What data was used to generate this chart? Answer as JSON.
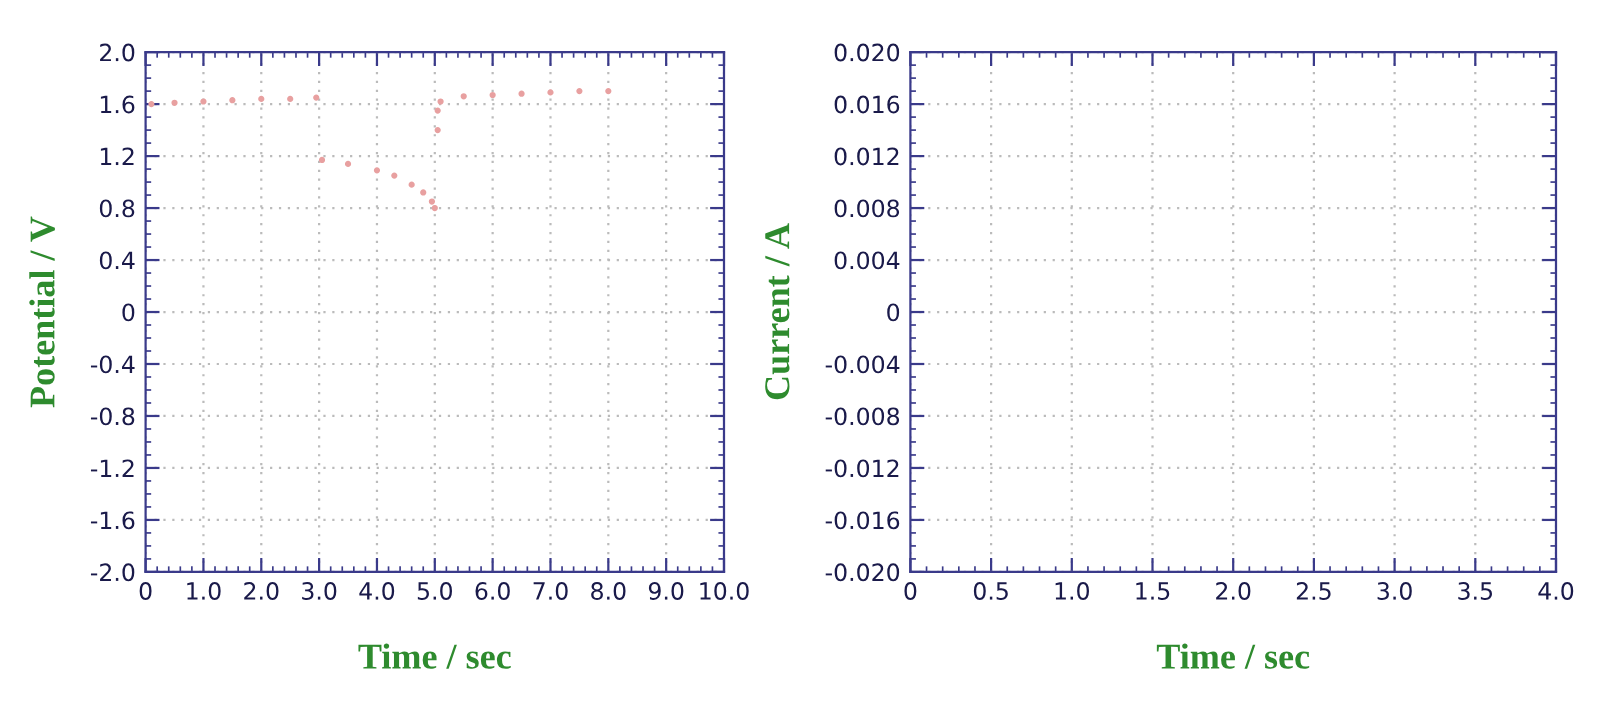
{
  "chart_data": [
    {
      "type": "scatter",
      "xlabel": "Time / sec",
      "ylabel": "Potential / V",
      "marker": "circle",
      "grid": true,
      "xlim": [
        0,
        10
      ],
      "xticks": [
        0,
        {
          "value": 1,
          "label": "1.0"
        },
        {
          "value": 2,
          "label": "2.0"
        },
        {
          "value": 3,
          "label": "3.0"
        },
        {
          "value": 4,
          "label": "4.0"
        },
        {
          "value": 5,
          "label": "5.0"
        },
        {
          "value": 6,
          "label": "6.0"
        },
        {
          "value": 7,
          "label": "7.0"
        },
        {
          "value": 8,
          "label": "8.0"
        },
        {
          "value": 9,
          "label": "9.0"
        },
        {
          "value": 10,
          "label": "10.0"
        }
      ],
      "ylim": [
        -2,
        2
      ],
      "yticks": [
        {
          "value": -2,
          "label": "-2.0"
        },
        {
          "value": -1.6,
          "label": "-1.6"
        },
        {
          "value": -1.2,
          "label": "-1.2"
        },
        {
          "value": -0.8,
          "label": "-0.8"
        },
        {
          "value": -0.4,
          "label": "-0.4"
        },
        0,
        {
          "value": 0.4,
          "label": "0.4"
        },
        {
          "value": 0.8,
          "label": "0.8"
        },
        {
          "value": 1.2,
          "label": "1.2"
        },
        {
          "value": 1.6,
          "label": "1.6"
        },
        {
          "value": 2,
          "label": "2.0"
        }
      ],
      "series": [
        {
          "color": "#e8a0a0",
          "x": [
            0.1,
            0.5,
            1.0,
            1.5,
            2.0,
            2.5,
            2.95,
            3.05,
            3.5,
            4.0,
            4.3,
            4.6,
            4.8,
            4.95,
            5.0,
            5.05,
            5.05,
            5.1,
            5.5,
            6.0,
            6.5,
            7.0,
            7.5,
            8.0
          ],
          "values": [
            1.6,
            1.61,
            1.62,
            1.63,
            1.64,
            1.64,
            1.65,
            1.17,
            1.14,
            1.09,
            1.05,
            0.98,
            0.92,
            0.85,
            0.8,
            1.4,
            1.55,
            1.62,
            1.66,
            1.67,
            1.68,
            1.69,
            1.7,
            1.7
          ]
        }
      ]
    },
    {
      "type": "line",
      "xlabel": "Time / sec",
      "ylabel": "Current / A",
      "grid": true,
      "xlim": [
        0,
        4
      ],
      "xticks": [
        0,
        0.5,
        {
          "value": 1,
          "label": "1.0"
        },
        1.5,
        {
          "value": 2,
          "label": "2.0"
        },
        2.5,
        {
          "value": 3,
          "label": "3.0"
        },
        3.5,
        {
          "value": 4,
          "label": "4.0"
        }
      ],
      "ylim": [
        -0.02,
        0.02
      ],
      "yticks": [
        {
          "value": -0.02,
          "label": "-0.020"
        },
        {
          "value": -0.016,
          "label": "-0.016"
        },
        {
          "value": -0.012,
          "label": "-0.012"
        },
        {
          "value": -0.008,
          "label": "-0.008"
        },
        {
          "value": -0.004,
          "label": "-0.004"
        },
        0,
        {
          "value": 0.004,
          "label": "0.004"
        },
        {
          "value": 0.008,
          "label": "0.008"
        },
        {
          "value": 0.012,
          "label": "0.012"
        },
        {
          "value": 0.016,
          "label": "0.016"
        },
        {
          "value": 0.02,
          "label": "0.020"
        }
      ]
    }
  ]
}
